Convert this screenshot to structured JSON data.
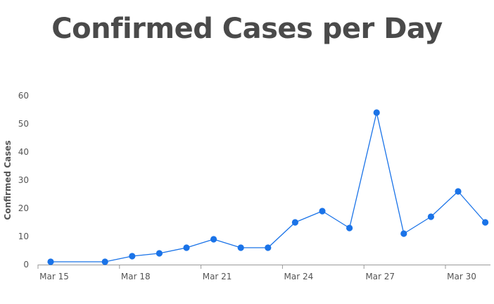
{
  "chart_data": {
    "type": "line",
    "title": "Confirmed Cases per Day",
    "xlabel": "",
    "ylabel": "Confirmed Cases",
    "ylim": [
      0,
      60
    ],
    "yticks": [
      "0",
      "10",
      "20",
      "30",
      "40",
      "50",
      "60"
    ],
    "xticks": [
      "Mar 15",
      "Mar 18",
      "Mar 21",
      "Mar 24",
      "Mar 27",
      "Mar 30"
    ],
    "grid": false,
    "legend": "none",
    "x": [
      "Mar 15",
      "Mar 17",
      "Mar 18",
      "Mar 19",
      "Mar 20",
      "Mar 21",
      "Mar 22",
      "Mar 23",
      "Mar 24",
      "Mar 25",
      "Mar 26",
      "Mar 27",
      "Mar 28",
      "Mar 29",
      "Mar 30",
      "Mar 31"
    ],
    "series": [
      {
        "values": [
          1,
          1,
          3,
          4,
          6,
          9,
          6,
          6,
          15,
          19,
          13,
          54,
          11,
          17,
          26,
          15
        ],
        "color": "#1a73e8"
      }
    ]
  }
}
